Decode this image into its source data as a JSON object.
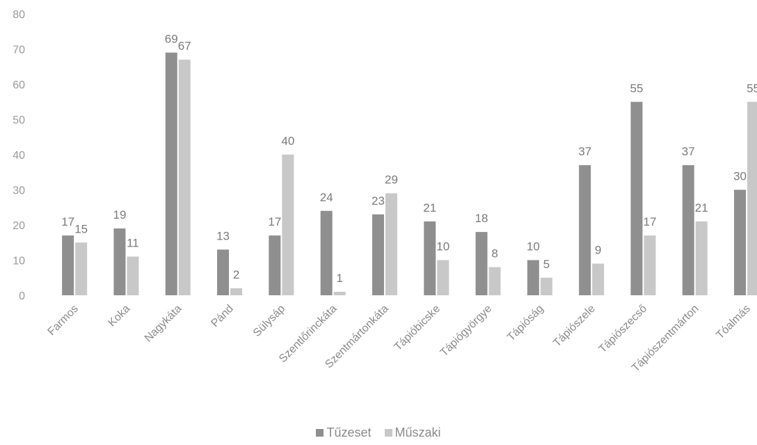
{
  "chart_data": {
    "type": "bar",
    "categories": [
      "Farmos",
      "Koka",
      "Nagykáta",
      "Pánd",
      "Sülysáp",
      "Szentlőrinckáta",
      "Szentmártonkáta",
      "Tápióbicske",
      "Tápiógyörgye",
      "Tápióság",
      "Tápiószele",
      "Tápiószecső",
      "Tápiószentmárton",
      "Tóalmás"
    ],
    "series": [
      {
        "name": "Tűzeset",
        "values": [
          17,
          19,
          69,
          13,
          17,
          24,
          23,
          21,
          18,
          10,
          37,
          55,
          37,
          30
        ],
        "color": "#8f8f8f"
      },
      {
        "name": "Műszaki",
        "values": [
          15,
          11,
          67,
          2,
          40,
          1,
          29,
          10,
          8,
          5,
          9,
          17,
          21,
          55
        ],
        "color": "#c8c8c8"
      }
    ],
    "ylim": [
      0,
      80
    ],
    "yticks": [
      0,
      10,
      20,
      30,
      40,
      50,
      60,
      70,
      80
    ],
    "grid": false,
    "legend": "bottom",
    "title": "",
    "xlabel": "",
    "ylabel": ""
  }
}
